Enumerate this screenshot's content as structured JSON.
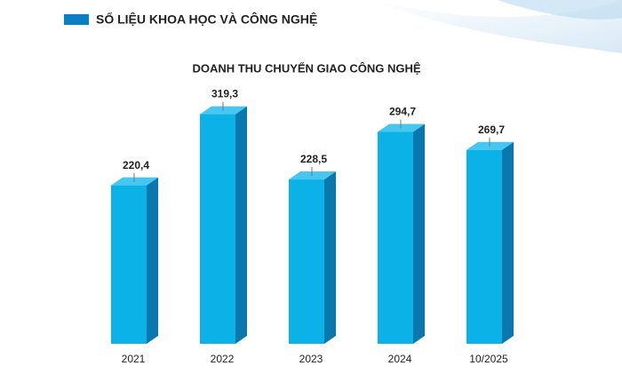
{
  "chart_data": {
    "type": "bar3d",
    "title": "DOANH THU CHUYỂN GIAO  CÔNG NGHỆ",
    "categories": [
      "2021",
      "2022",
      "2023",
      "2024",
      "10/2025"
    ],
    "series": [
      {
        "name": "SỐ LIỆU KHOA HỌC VÀ CÔNG NGHỆ",
        "color": "#0bb2e8",
        "values": [
          220.4,
          319.3,
          228.5,
          294.7,
          269.7
        ],
        "value_labels": [
          "220,4",
          "319,3",
          "228,5",
          "294,7",
          "269,7"
        ]
      }
    ],
    "ylim": [
      0,
      320
    ]
  }
}
